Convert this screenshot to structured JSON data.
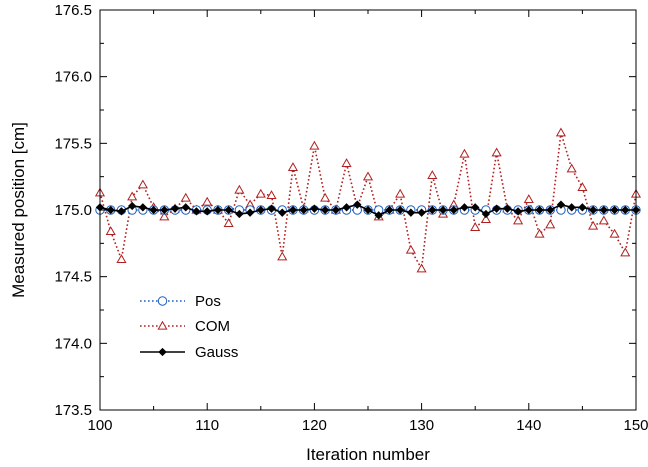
{
  "chart_data": {
    "type": "line",
    "title": "",
    "xlabel": "Iteration number",
    "ylabel": "Measured position [cm]",
    "xlim": [
      100,
      150
    ],
    "ylim": [
      173.5,
      176.5
    ],
    "xticks": [
      "100",
      "110",
      "120",
      "130",
      "140",
      "150"
    ],
    "yticks": [
      "173.5",
      "174.0",
      "174.5",
      "175.0",
      "175.5",
      "176.0",
      "176.5"
    ],
    "grid": false,
    "legend_position": "lower-left",
    "x": [
      100,
      101,
      102,
      103,
      104,
      105,
      106,
      107,
      108,
      109,
      110,
      111,
      112,
      113,
      114,
      115,
      116,
      117,
      118,
      119,
      120,
      121,
      122,
      123,
      124,
      125,
      126,
      127,
      128,
      129,
      130,
      131,
      132,
      133,
      134,
      135,
      136,
      137,
      138,
      139,
      140,
      141,
      142,
      143,
      144,
      145,
      146,
      147,
      148,
      149,
      150
    ],
    "series": [
      {
        "name": "Pos",
        "color": "#1f5fbf",
        "marker": "open-circle",
        "line_style": "dotted",
        "values": [
          175.0,
          175.0,
          175.0,
          175.0,
          175.0,
          175.0,
          175.0,
          175.0,
          175.0,
          175.0,
          175.0,
          175.0,
          175.0,
          175.0,
          175.0,
          175.0,
          175.0,
          175.0,
          175.0,
          175.0,
          175.0,
          175.0,
          175.0,
          175.0,
          175.0,
          175.0,
          175.0,
          175.0,
          175.0,
          175.0,
          175.0,
          175.0,
          175.0,
          175.0,
          175.0,
          175.0,
          175.0,
          175.0,
          175.0,
          175.0,
          175.0,
          175.0,
          175.0,
          175.0,
          175.0,
          175.0,
          175.0,
          175.0,
          175.0,
          175.0,
          175.0
        ]
      },
      {
        "name": "COM",
        "color": "#b02020",
        "marker": "open-triangle",
        "line_style": "dotted",
        "values": [
          175.13,
          174.84,
          174.63,
          175.1,
          175.19,
          175.02,
          174.95,
          175.01,
          175.09,
          175.0,
          175.06,
          175.0,
          174.9,
          175.15,
          175.04,
          175.12,
          175.11,
          174.65,
          175.32,
          175.01,
          175.48,
          175.09,
          175.0,
          175.35,
          175.02,
          175.25,
          174.95,
          175.0,
          175.12,
          174.7,
          174.56,
          175.26,
          174.97,
          175.04,
          175.42,
          174.87,
          174.93,
          175.43,
          175.01,
          174.92,
          175.08,
          174.82,
          174.89,
          175.58,
          175.31,
          175.17,
          174.88,
          174.92,
          174.82,
          174.68,
          175.12
        ]
      },
      {
        "name": "Gauss",
        "color": "#000000",
        "marker": "filled-diamond",
        "line_style": "solid",
        "values": [
          175.02,
          175.0,
          174.99,
          175.03,
          175.02,
          175.0,
          175.0,
          175.01,
          175.02,
          174.99,
          174.99,
          175.0,
          175.0,
          174.97,
          174.98,
          175.0,
          175.01,
          174.98,
          175.0,
          175.0,
          175.01,
          175.0,
          175.0,
          175.02,
          175.04,
          175.0,
          174.96,
          175.0,
          175.0,
          174.98,
          174.98,
          175.0,
          175.0,
          175.0,
          175.02,
          175.02,
          174.97,
          175.01,
          175.01,
          174.99,
          175.0,
          175.0,
          175.0,
          175.04,
          175.02,
          175.02,
          175.0,
          175.0,
          175.0,
          175.0,
          175.0
        ]
      }
    ]
  }
}
